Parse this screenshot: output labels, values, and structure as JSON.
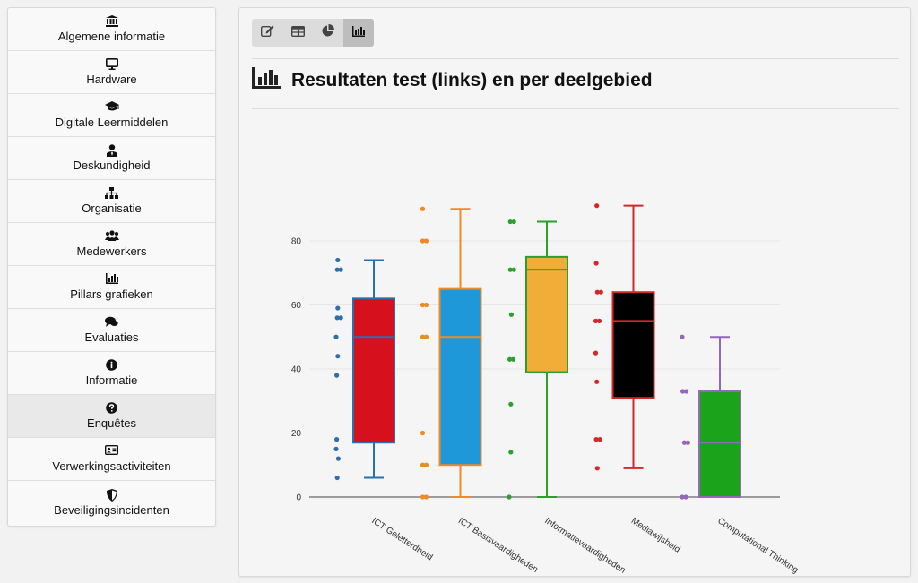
{
  "sidebar": {
    "items": [
      {
        "label": "Algemene informatie",
        "icon": "bank-icon"
      },
      {
        "label": "Hardware",
        "icon": "monitor-icon"
      },
      {
        "label": "Digitale Leermiddelen",
        "icon": "graduation-cap-icon"
      },
      {
        "label": "Deskundigheid",
        "icon": "user-tie-icon"
      },
      {
        "label": "Organisatie",
        "icon": "sitemap-icon"
      },
      {
        "label": "Medewerkers",
        "icon": "users-icon"
      },
      {
        "label": "Pillars grafieken",
        "icon": "bar-chart-icon"
      },
      {
        "label": "Evaluaties",
        "icon": "comments-icon"
      },
      {
        "label": "Informatie",
        "icon": "info-circle-icon"
      },
      {
        "label": "Enquêtes",
        "icon": "question-circle-icon",
        "active": true
      },
      {
        "label": "Verwerkingsactiviteiten",
        "icon": "id-card-icon"
      },
      {
        "label": "Beveiligingsincidenten",
        "icon": "shield-icon"
      }
    ]
  },
  "toolbar": {
    "buttons": [
      {
        "icon": "edit-icon"
      },
      {
        "icon": "table-icon"
      },
      {
        "icon": "pie-chart-icon"
      },
      {
        "icon": "bar-chart-icon",
        "active": true
      }
    ]
  },
  "main": {
    "title": "Resultaten test (links) en per deelgebied"
  },
  "chart_data": {
    "type": "box",
    "ylim": [
      0,
      100
    ],
    "yticks": [
      0,
      20,
      40,
      60,
      80
    ],
    "grid": true,
    "categories": [
      "ICT Geletterdheid",
      "ICT Basisvaardigheden",
      "Informatievaardigheden",
      "Mediawijsheid",
      "Computational Thinking"
    ],
    "series": [
      {
        "category": "ICT Geletterdheid",
        "min": 6,
        "q1": 17,
        "median": 50,
        "q3": 62,
        "max": 74,
        "fill": "#d7101e",
        "edge": "#2a6fb0",
        "points": [
          74,
          71,
          71,
          59,
          56,
          56,
          50,
          44,
          38,
          18,
          15,
          12,
          6
        ]
      },
      {
        "category": "ICT Basisvaardigheden",
        "min": 0,
        "q1": 10,
        "median": 50,
        "q3": 65,
        "max": 90,
        "fill": "#1f98d9",
        "edge": "#f08a25",
        "points": [
          90,
          80,
          80,
          60,
          60,
          50,
          50,
          20,
          10,
          10,
          0,
          0
        ]
      },
      {
        "category": "Informatievaardigheden",
        "min": 0,
        "q1": 39,
        "median": 71,
        "q3": 75,
        "max": 86,
        "fill": "#f0ad37",
        "edge": "#2ca02c",
        "points": [
          86,
          86,
          71,
          71,
          57,
          43,
          43,
          29,
          14,
          0
        ]
      },
      {
        "category": "Mediawijsheid",
        "min": 9,
        "q1": 31,
        "median": 55,
        "q3": 64,
        "max": 91,
        "fill": "#000000",
        "edge": "#d62728",
        "points": [
          91,
          73,
          64,
          64,
          55,
          55,
          45,
          36,
          18,
          18,
          9
        ]
      },
      {
        "category": "Computational Thinking",
        "min": 0,
        "q1": 0,
        "median": 17,
        "q3": 33,
        "max": 50,
        "fill": "#1ba31b",
        "edge": "#9467bd",
        "points": [
          50,
          33,
          33,
          17,
          17,
          0,
          0
        ]
      }
    ]
  }
}
